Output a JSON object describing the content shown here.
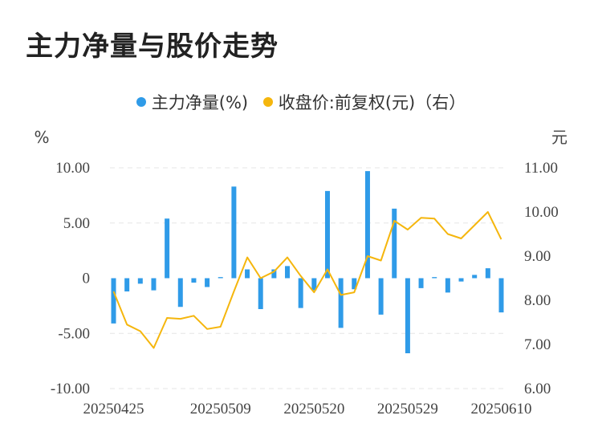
{
  "chart_data": {
    "type": "bar+line",
    "title": "主力净量与股价走势",
    "legend": [
      {
        "name": "主力净量(%)",
        "color": "#2f9be8"
      },
      {
        "name": "收盘价:前复权(元)（右）",
        "color": "#f5b60d"
      }
    ],
    "y_left_unit": "%",
    "y_right_unit": "元",
    "y_left_ticks": [
      "10.00",
      "5.00",
      "0",
      "-5.00",
      "-10.00"
    ],
    "y_left_range": [
      -10,
      10
    ],
    "y_right_ticks": [
      "11.00",
      "10.00",
      "9.00",
      "8.00",
      "7.00",
      "6.00"
    ],
    "y_right_range": [
      6,
      11
    ],
    "x_tick_labels": [
      "20250425",
      "20250509",
      "20250520",
      "20250529",
      "20250610"
    ],
    "x_tick_indices": [
      0,
      8,
      15,
      22,
      29
    ],
    "series": [
      {
        "name": "主力净量(%)",
        "type": "bar",
        "values": [
          -4.1,
          -1.2,
          -0.5,
          -1.1,
          5.4,
          -2.6,
          -0.4,
          -0.8,
          0.1,
          8.3,
          0.8,
          -2.8,
          0.8,
          1.1,
          -2.7,
          -1.1,
          7.9,
          -4.5,
          -1.0,
          9.7,
          -3.3,
          6.3,
          -6.8,
          -0.9,
          0.1,
          -1.3,
          -0.3,
          0.3,
          0.9,
          -3.1
        ]
      },
      {
        "name": "收盘价:前复权(元)（右）",
        "type": "line",
        "values": [
          8.2,
          7.45,
          7.3,
          6.92,
          7.6,
          7.58,
          7.65,
          7.35,
          7.4,
          8.2,
          8.97,
          8.5,
          8.65,
          8.97,
          8.55,
          8.18,
          8.7,
          8.12,
          8.18,
          9.0,
          8.9,
          9.8,
          9.6,
          9.87,
          9.85,
          9.5,
          9.4,
          9.7,
          10.0,
          9.38
        ]
      }
    ]
  }
}
